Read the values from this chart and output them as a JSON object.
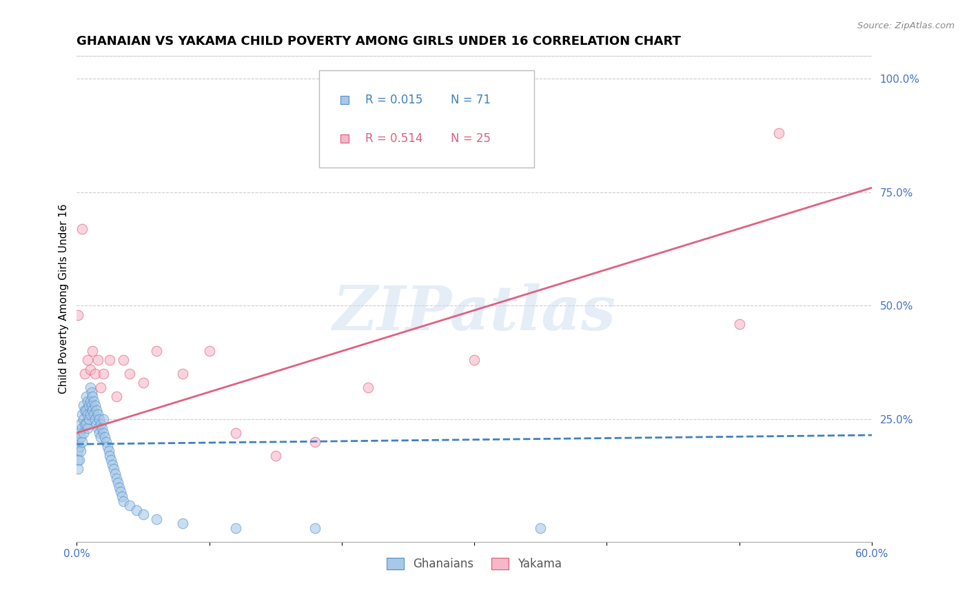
{
  "title": "GHANAIAN VS YAKAMA CHILD POVERTY AMONG GIRLS UNDER 16 CORRELATION CHART",
  "source": "Source: ZipAtlas.com",
  "ylabel": "Child Poverty Among Girls Under 16",
  "xlim": [
    0.0,
    0.6
  ],
  "ylim": [
    -0.02,
    1.05
  ],
  "xticks": [
    0.0,
    0.1,
    0.2,
    0.3,
    0.4,
    0.5,
    0.6
  ],
  "xtick_labels": [
    "0.0%",
    "",
    "",
    "",
    "",
    "",
    "60.0%"
  ],
  "yticks_right": [
    0.25,
    0.5,
    0.75,
    1.0
  ],
  "ytick_labels_right": [
    "25.0%",
    "50.0%",
    "75.0%",
    "100.0%"
  ],
  "blue_color": "#a8c8e8",
  "pink_color": "#f5b8c8",
  "blue_edge_color": "#5090c8",
  "pink_edge_color": "#e05878",
  "blue_line_color": "#4080c0",
  "pink_line_color": "#e06080",
  "r_blue": "0.015",
  "n_blue": "71",
  "r_pink": "0.514",
  "n_pink": "25",
  "watermark": "ZIPatlas",
  "legend_label_blue": "Ghanaians",
  "legend_label_pink": "Yakama",
  "blue_trendline_y0": 0.195,
  "blue_trendline_y1": 0.215,
  "pink_trendline_y0": 0.22,
  "pink_trendline_y1": 0.76,
  "ghanaian_x": [
    0.001,
    0.001,
    0.001,
    0.001,
    0.002,
    0.002,
    0.002,
    0.003,
    0.003,
    0.003,
    0.004,
    0.004,
    0.004,
    0.005,
    0.005,
    0.005,
    0.006,
    0.006,
    0.007,
    0.007,
    0.007,
    0.008,
    0.008,
    0.008,
    0.009,
    0.009,
    0.01,
    0.01,
    0.01,
    0.011,
    0.011,
    0.012,
    0.012,
    0.013,
    0.013,
    0.014,
    0.014,
    0.015,
    0.015,
    0.016,
    0.016,
    0.017,
    0.017,
    0.018,
    0.018,
    0.019,
    0.02,
    0.02,
    0.021,
    0.022,
    0.023,
    0.024,
    0.025,
    0.026,
    0.027,
    0.028,
    0.029,
    0.03,
    0.031,
    0.032,
    0.033,
    0.034,
    0.035,
    0.04,
    0.045,
    0.05,
    0.06,
    0.08,
    0.12,
    0.18,
    0.35
  ],
  "ghanaian_y": [
    0.2,
    0.18,
    0.16,
    0.14,
    0.22,
    0.19,
    0.16,
    0.24,
    0.21,
    0.18,
    0.26,
    0.23,
    0.2,
    0.28,
    0.25,
    0.22,
    0.27,
    0.24,
    0.3,
    0.27,
    0.24,
    0.29,
    0.26,
    0.23,
    0.28,
    0.25,
    0.32,
    0.29,
    0.26,
    0.31,
    0.28,
    0.3,
    0.27,
    0.29,
    0.26,
    0.28,
    0.25,
    0.27,
    0.24,
    0.26,
    0.23,
    0.25,
    0.22,
    0.24,
    0.21,
    0.23,
    0.25,
    0.22,
    0.21,
    0.2,
    0.19,
    0.18,
    0.17,
    0.16,
    0.15,
    0.14,
    0.13,
    0.12,
    0.11,
    0.1,
    0.09,
    0.08,
    0.07,
    0.06,
    0.05,
    0.04,
    0.03,
    0.02,
    0.01,
    0.01,
    0.01
  ],
  "yakama_x": [
    0.001,
    0.004,
    0.006,
    0.008,
    0.01,
    0.012,
    0.014,
    0.016,
    0.018,
    0.02,
    0.025,
    0.03,
    0.035,
    0.04,
    0.05,
    0.06,
    0.08,
    0.1,
    0.12,
    0.15,
    0.18,
    0.22,
    0.3,
    0.5,
    0.53
  ],
  "yakama_y": [
    0.48,
    0.67,
    0.35,
    0.38,
    0.36,
    0.4,
    0.35,
    0.38,
    0.32,
    0.35,
    0.38,
    0.3,
    0.38,
    0.35,
    0.33,
    0.4,
    0.35,
    0.4,
    0.22,
    0.17,
    0.2,
    0.32,
    0.38,
    0.46,
    0.88
  ],
  "background_color": "#ffffff",
  "grid_color": "#cccccc",
  "title_fontsize": 13,
  "axis_label_fontsize": 11,
  "tick_fontsize": 11,
  "legend_fontsize": 12
}
